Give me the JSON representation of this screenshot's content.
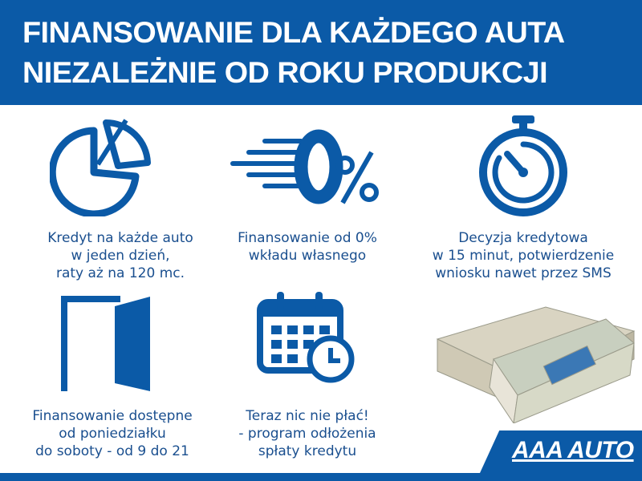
{
  "header": {
    "line1": "FINANSOWANIE DLA KAŻDEGO AUTA",
    "line2": "NIEZALEŻNIE OD ROKU PRODUKCJI"
  },
  "features": [
    {
      "icon": "pie-chart-icon",
      "lines": [
        "Kredyt na każde auto",
        "w jeden dzień,",
        "raty aż na 120 mc."
      ]
    },
    {
      "icon": "zero-percent-icon",
      "lines": [
        "Finansowanie od 0%",
        "wkładu własnego"
      ]
    },
    {
      "icon": "stopwatch-icon",
      "lines": [
        "Decyzja kredytowa",
        "w 15 minut, potwierdzenie",
        "wniosku nawet przez SMS"
      ]
    },
    {
      "icon": "open-door-icon",
      "lines": [
        "Finansowanie dostępne",
        "od poniedziałku",
        "do soboty - od 9 do 21"
      ]
    },
    {
      "icon": "calendar-clock-icon",
      "lines": [
        "Teraz nic nie płać!",
        "- program odłożenia",
        "spłaty kredytu"
      ]
    },
    {
      "icon": "money-stack-icon",
      "lines": []
    }
  ],
  "logo": {
    "text": "AAA AUTO"
  },
  "colors": {
    "brand_blue": "#0b5aa7",
    "text_blue": "#1a4f8f"
  }
}
